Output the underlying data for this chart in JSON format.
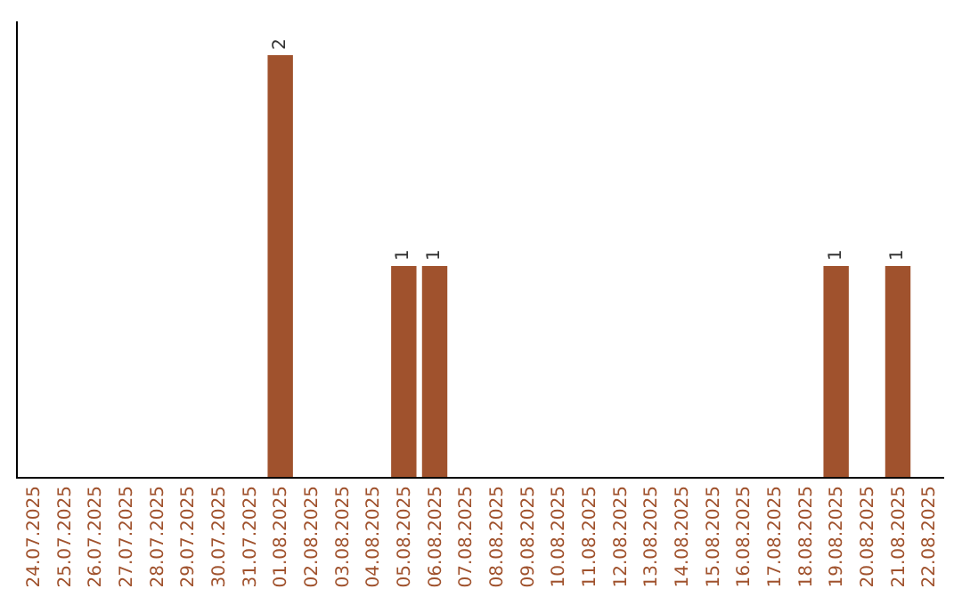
{
  "chart_data": {
    "type": "bar",
    "categories": [
      "24.07.2025",
      "25.07.2025",
      "26.07.2025",
      "27.07.2025",
      "28.07.2025",
      "29.07.2025",
      "30.07.2025",
      "31.07.2025",
      "01.08.2025",
      "02.08.2025",
      "03.08.2025",
      "04.08.2025",
      "05.08.2025",
      "06.08.2025",
      "07.08.2025",
      "08.08.2025",
      "09.08.2025",
      "10.08.2025",
      "11.08.2025",
      "12.08.2025",
      "13.08.2025",
      "14.08.2025",
      "15.08.2025",
      "16.08.2025",
      "17.08.2025",
      "18.08.2025",
      "19.08.2025",
      "20.08.2025",
      "21.08.2025",
      "22.08.2025"
    ],
    "values": [
      0,
      0,
      0,
      0,
      0,
      0,
      0,
      0,
      2,
      0,
      0,
      0,
      1,
      1,
      0,
      0,
      0,
      0,
      0,
      0,
      0,
      0,
      0,
      0,
      0,
      0,
      1,
      0,
      1,
      0
    ],
    "value_labels": [
      null,
      null,
      null,
      null,
      null,
      null,
      null,
      null,
      "2",
      null,
      null,
      null,
      "1",
      "1",
      null,
      null,
      null,
      null,
      null,
      null,
      null,
      null,
      null,
      null,
      null,
      null,
      "1",
      null,
      "1",
      null
    ],
    "color": "#a0522d",
    "tick_labels": "x",
    "legend": false
  }
}
